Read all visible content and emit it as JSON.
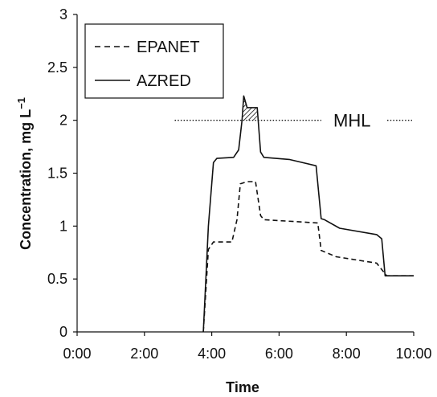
{
  "chart_data": {
    "type": "line",
    "title": "",
    "xlabel": "Time",
    "ylabel_main": "Concentration, mg L",
    "ylabel_sup": "−1",
    "xlim": [
      0,
      10
    ],
    "ylim": [
      0,
      3
    ],
    "xticks": [
      "0:00",
      "2:00",
      "4:00",
      "6:00",
      "8:00",
      "10:00"
    ],
    "yticks": [
      "0",
      "0.5",
      "1",
      "1.5",
      "2",
      "2.5",
      "3"
    ],
    "grid": false,
    "legend_position": "top-left",
    "series": [
      {
        "name": "EPANET",
        "style": "dashed",
        "color": "#111111",
        "x": [
          3.75,
          3.9,
          4.05,
          4.6,
          4.75,
          4.85,
          5.05,
          5.3,
          5.45,
          5.55,
          7.15,
          7.25,
          7.7,
          8.9,
          9.1,
          9.2,
          10.0
        ],
        "y": [
          0.0,
          0.78,
          0.85,
          0.85,
          1.06,
          1.4,
          1.42,
          1.42,
          1.1,
          1.06,
          1.03,
          0.77,
          0.71,
          0.65,
          0.57,
          0.53,
          0.53
        ]
      },
      {
        "name": "AZRED",
        "style": "solid",
        "color": "#111111",
        "x": [
          3.75,
          3.9,
          4.05,
          4.15,
          4.65,
          4.8,
          4.9,
          4.95,
          5.05,
          5.1,
          5.35,
          5.45,
          5.55,
          6.3,
          7.1,
          7.25,
          7.35,
          7.8,
          8.9,
          9.05,
          9.15,
          10.0
        ],
        "y": [
          0.0,
          1.0,
          1.6,
          1.64,
          1.65,
          1.72,
          2.0,
          2.23,
          2.12,
          2.12,
          2.12,
          1.7,
          1.65,
          1.63,
          1.57,
          1.07,
          1.06,
          0.98,
          0.92,
          0.88,
          0.53,
          0.53
        ]
      }
    ],
    "reference_line": {
      "label": "MHL",
      "y": 2,
      "style": "dotted"
    },
    "hatched_region": {
      "description_series": "AZRED",
      "x_start": 4.9,
      "x_end": 5.35,
      "above_y": 2
    }
  }
}
